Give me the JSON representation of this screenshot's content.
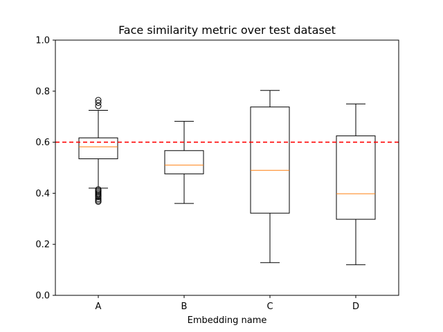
{
  "chart_data": {
    "type": "boxplot",
    "title": "Face similarity metric over test dataset",
    "xlabel": "Embedding name",
    "ylabel": "",
    "ylim": [
      0.0,
      1.0
    ],
    "yticks": [
      "0.0",
      "0.2",
      "0.4",
      "0.6",
      "0.8",
      "1.0"
    ],
    "grid": false,
    "categories": [
      "A",
      "B",
      "C",
      "D"
    ],
    "boxes": [
      {
        "category": "A",
        "whisker_low": 0.42,
        "q1": 0.535,
        "median": 0.582,
        "q3": 0.617,
        "whisker_high": 0.725,
        "outliers": [
          0.765,
          0.755,
          0.742,
          0.415,
          0.41,
          0.405,
          0.4,
          0.395,
          0.39,
          0.385,
          0.378,
          0.372,
          0.367
        ]
      },
      {
        "category": "B",
        "whisker_low": 0.36,
        "q1": 0.476,
        "median": 0.51,
        "q3": 0.567,
        "whisker_high": 0.682,
        "outliers": []
      },
      {
        "category": "C",
        "whisker_low": 0.128,
        "q1": 0.322,
        "median": 0.49,
        "q3": 0.738,
        "whisker_high": 0.803,
        "outliers": []
      },
      {
        "category": "D",
        "whisker_low": 0.12,
        "q1": 0.298,
        "median": 0.398,
        "q3": 0.625,
        "whisker_high": 0.75,
        "outliers": []
      }
    ],
    "reference_line": {
      "y": 0.6,
      "color": "#ff0000",
      "style": "dashed"
    },
    "colors": {
      "box": "#000000",
      "median": "#ff7f0e",
      "reference": "#ff0000"
    }
  }
}
